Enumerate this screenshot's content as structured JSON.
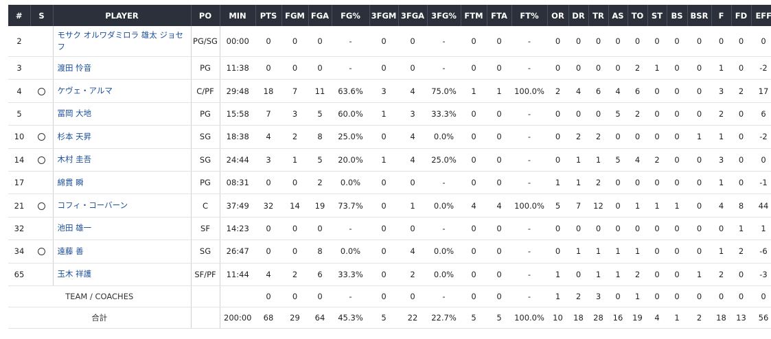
{
  "columns": [
    "#",
    "S",
    "PLAYER",
    "PO",
    "MIN",
    "PTS",
    "FGM",
    "FGA",
    "FG%",
    "3FGM",
    "3FGA",
    "3FG%",
    "FTM",
    "FTA",
    "FT%",
    "OR",
    "DR",
    "TR",
    "AS",
    "TO",
    "ST",
    "BS",
    "BSR",
    "F",
    "FD",
    "EFF"
  ],
  "players": [
    {
      "no": "2",
      "starter": false,
      "name": "モサク オルワダミロラ 雄太 ジョセフ",
      "pos": "PG/SG",
      "stats": [
        "00:00",
        "0",
        "0",
        "0",
        "-",
        "0",
        "0",
        "-",
        "0",
        "0",
        "-",
        "0",
        "0",
        "0",
        "0",
        "0",
        "0",
        "0",
        "0",
        "0",
        "0",
        "0"
      ]
    },
    {
      "no": "3",
      "starter": false,
      "name": "渡田 怜音",
      "pos": "PG",
      "stats": [
        "11:38",
        "0",
        "0",
        "0",
        "-",
        "0",
        "0",
        "-",
        "0",
        "0",
        "-",
        "0",
        "0",
        "0",
        "0",
        "2",
        "1",
        "0",
        "0",
        "1",
        "0",
        "-2"
      ]
    },
    {
      "no": "4",
      "starter": true,
      "name": "ケヴェ・アルマ",
      "pos": "C/PF",
      "stats": [
        "29:48",
        "18",
        "7",
        "11",
        "63.6%",
        "3",
        "4",
        "75.0%",
        "1",
        "1",
        "100.0%",
        "2",
        "4",
        "6",
        "4",
        "6",
        "0",
        "0",
        "0",
        "3",
        "2",
        "17"
      ]
    },
    {
      "no": "5",
      "starter": false,
      "name": "冨岡 大地",
      "pos": "PG",
      "stats": [
        "15:58",
        "7",
        "3",
        "5",
        "60.0%",
        "1",
        "3",
        "33.3%",
        "0",
        "0",
        "-",
        "0",
        "0",
        "0",
        "5",
        "2",
        "0",
        "0",
        "0",
        "2",
        "0",
        "6"
      ]
    },
    {
      "no": "10",
      "starter": true,
      "name": "杉本 天昇",
      "pos": "SG",
      "stats": [
        "18:38",
        "4",
        "2",
        "8",
        "25.0%",
        "0",
        "4",
        "0.0%",
        "0",
        "0",
        "-",
        "0",
        "2",
        "2",
        "0",
        "0",
        "0",
        "0",
        "1",
        "1",
        "0",
        "-2"
      ]
    },
    {
      "no": "14",
      "starter": true,
      "name": "木村 圭吾",
      "pos": "SG",
      "stats": [
        "24:44",
        "3",
        "1",
        "5",
        "20.0%",
        "1",
        "4",
        "25.0%",
        "0",
        "0",
        "-",
        "0",
        "1",
        "1",
        "5",
        "4",
        "2",
        "0",
        "0",
        "3",
        "0",
        "0"
      ]
    },
    {
      "no": "17",
      "starter": false,
      "name": "綿貫 瞬",
      "pos": "PG",
      "stats": [
        "08:31",
        "0",
        "0",
        "2",
        "0.0%",
        "0",
        "0",
        "-",
        "0",
        "0",
        "-",
        "1",
        "1",
        "2",
        "0",
        "0",
        "0",
        "0",
        "0",
        "1",
        "0",
        "-1"
      ]
    },
    {
      "no": "21",
      "starter": true,
      "name": "コフィ・コーバーン",
      "pos": "C",
      "stats": [
        "37:49",
        "32",
        "14",
        "19",
        "73.7%",
        "0",
        "1",
        "0.0%",
        "4",
        "4",
        "100.0%",
        "5",
        "7",
        "12",
        "0",
        "1",
        "1",
        "1",
        "0",
        "4",
        "8",
        "44"
      ]
    },
    {
      "no": "32",
      "starter": false,
      "name": "池田 雄一",
      "pos": "SF",
      "stats": [
        "14:23",
        "0",
        "0",
        "0",
        "-",
        "0",
        "0",
        "-",
        "0",
        "0",
        "-",
        "0",
        "0",
        "0",
        "0",
        "0",
        "0",
        "0",
        "0",
        "0",
        "1",
        "1"
      ]
    },
    {
      "no": "34",
      "starter": true,
      "name": "遠藤 善",
      "pos": "SG",
      "stats": [
        "26:47",
        "0",
        "0",
        "8",
        "0.0%",
        "0",
        "4",
        "0.0%",
        "0",
        "0",
        "-",
        "0",
        "1",
        "1",
        "1",
        "1",
        "0",
        "0",
        "0",
        "1",
        "2",
        "-6"
      ]
    },
    {
      "no": "65",
      "starter": false,
      "name": "玉木 祥護",
      "pos": "SF/PF",
      "stats": [
        "11:44",
        "4",
        "2",
        "6",
        "33.3%",
        "0",
        "2",
        "0.0%",
        "0",
        "0",
        "-",
        "1",
        "0",
        "1",
        "1",
        "2",
        "0",
        "0",
        "1",
        "2",
        "0",
        "-3"
      ]
    }
  ],
  "team_row": {
    "label": "TEAM / COACHES",
    "stats": [
      "",
      "0",
      "0",
      "0",
      "-",
      "0",
      "0",
      "-",
      "0",
      "0",
      "-",
      "1",
      "2",
      "3",
      "0",
      "1",
      "0",
      "0",
      "0",
      "0",
      "0",
      "0"
    ]
  },
  "total_row": {
    "label": "合計",
    "stats": [
      "200:00",
      "68",
      "29",
      "64",
      "45.3%",
      "5",
      "22",
      "22.7%",
      "5",
      "5",
      "100.0%",
      "10",
      "18",
      "28",
      "16",
      "19",
      "4",
      "1",
      "2",
      "18",
      "13",
      "56"
    ]
  },
  "starter_icon": "circle-icon"
}
